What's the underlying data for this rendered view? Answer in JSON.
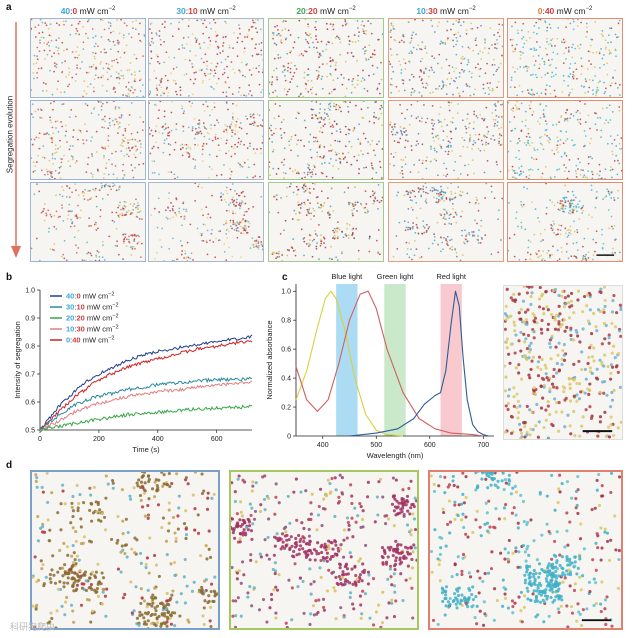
{
  "panels": {
    "a": {
      "label": "a",
      "side_label": "Segregation evolution",
      "columns": [
        {
          "ratio_a": "40",
          "ratio_b": "0",
          "unit": "mW cm",
          "exp": "−2",
          "color_a": "#3aa6d8",
          "color_b": "#d04040",
          "frame": "#9bb5d6"
        },
        {
          "ratio_a": "30",
          "ratio_b": "10",
          "unit": "mW cm",
          "exp": "−2",
          "color_a": "#3aa6d8",
          "color_b": "#d04040",
          "frame": "#aab8cc"
        },
        {
          "ratio_a": "20",
          "ratio_b": "20",
          "unit": "mW cm",
          "exp": "−2",
          "color_a": "#3aa650",
          "color_b": "#d04040",
          "frame": "#a6c890"
        },
        {
          "ratio_a": "10",
          "ratio_b": "30",
          "unit": "mW cm",
          "exp": "−2",
          "color_a": "#3aa6d8",
          "color_b": "#d04040",
          "frame": "#e0a080"
        },
        {
          "ratio_a": "0",
          "ratio_b": "40",
          "unit": "mW cm",
          "exp": "−2",
          "color_a": "#e07b39",
          "color_b": "#d04040",
          "frame": "#e09070"
        }
      ]
    },
    "b": {
      "label": "b",
      "legend": [
        {
          "ratio_a": "40",
          "ratio_b": "0",
          "unit": "mW cm",
          "exp": "−2",
          "color": "#1f3f8f"
        },
        {
          "ratio_a": "30",
          "ratio_b": "10",
          "unit": "mW cm",
          "exp": "−2",
          "color": "#2a8aa0"
        },
        {
          "ratio_a": "20",
          "ratio_b": "20",
          "unit": "mW cm",
          "exp": "−2",
          "color": "#3aa64a"
        },
        {
          "ratio_a": "10",
          "ratio_b": "30",
          "unit": "mW cm",
          "exp": "−2",
          "color": "#e08080"
        },
        {
          "ratio_a": "0",
          "ratio_b": "40",
          "unit": "mW cm",
          "exp": "−2",
          "color": "#d02020"
        }
      ]
    },
    "c": {
      "label": "c",
      "bands": [
        "Blue light",
        "Green light",
        "Red light"
      ],
      "band_colors": [
        "#8fd0f0",
        "#b8e0b8",
        "#f6b8c0"
      ]
    },
    "d": {
      "label": "d"
    }
  },
  "chart_data": [
    {
      "type": "line",
      "panel": "b",
      "title": "",
      "xlabel": "Time (s)",
      "ylabel": "Intensity of segregation",
      "xlim": [
        0,
        720
      ],
      "ylim": [
        0.5,
        1.0
      ],
      "xticks": [
        "0",
        "200",
        "400",
        "600"
      ],
      "yticks": [
        "0.5",
        "0.6",
        "0.7",
        "0.8",
        "0.9",
        "1.0"
      ],
      "x": [
        0,
        60,
        120,
        180,
        240,
        300,
        360,
        420,
        480,
        540,
        600,
        660,
        720
      ],
      "series": [
        {
          "name": "40:0",
          "color": "#1f3f8f",
          "values": [
            0.5,
            0.58,
            0.64,
            0.69,
            0.72,
            0.75,
            0.77,
            0.785,
            0.795,
            0.805,
            0.815,
            0.825,
            0.835
          ]
        },
        {
          "name": "0:40",
          "color": "#d02020",
          "values": [
            0.5,
            0.56,
            0.62,
            0.665,
            0.7,
            0.725,
            0.745,
            0.76,
            0.775,
            0.79,
            0.8,
            0.81,
            0.82
          ]
        },
        {
          "name": "30:10",
          "color": "#2a8aa0",
          "values": [
            0.5,
            0.55,
            0.59,
            0.615,
            0.63,
            0.645,
            0.655,
            0.665,
            0.67,
            0.675,
            0.68,
            0.68,
            0.685
          ]
        },
        {
          "name": "10:30",
          "color": "#e08080",
          "values": [
            0.5,
            0.53,
            0.565,
            0.59,
            0.605,
            0.62,
            0.63,
            0.64,
            0.645,
            0.655,
            0.66,
            0.665,
            0.67
          ]
        },
        {
          "name": "20:20",
          "color": "#3aa64a",
          "values": [
            0.5,
            0.51,
            0.525,
            0.535,
            0.545,
            0.555,
            0.56,
            0.565,
            0.57,
            0.575,
            0.578,
            0.58,
            0.585
          ]
        }
      ]
    },
    {
      "type": "line",
      "panel": "c",
      "title": "",
      "xlabel": "Wavelength (nm)",
      "ylabel": "Normalized absorbance",
      "xlim": [
        350,
        720
      ],
      "ylim": [
        0,
        1.05
      ],
      "xticks": [
        "400",
        "500",
        "600",
        "700"
      ],
      "yticks": [
        "0",
        "0.2",
        "0.4",
        "0.6",
        "0.8",
        "1.0"
      ],
      "bands_nm": [
        [
          425,
          465
        ],
        [
          515,
          555
        ],
        [
          620,
          660
        ]
      ],
      "series": [
        {
          "name": "yellow",
          "color": "#d8d040",
          "x": [
            350,
            370,
            390,
            405,
            415,
            425,
            440,
            460,
            480,
            500,
            520,
            550
          ],
          "values": [
            0.25,
            0.45,
            0.75,
            0.95,
            1.0,
            0.95,
            0.75,
            0.4,
            0.15,
            0.04,
            0.01,
            0.0
          ]
        },
        {
          "name": "red",
          "color": "#d06060",
          "x": [
            350,
            370,
            390,
            410,
            430,
            450,
            470,
            485,
            500,
            520,
            550,
            580,
            610,
            640,
            680,
            700
          ],
          "values": [
            0.48,
            0.25,
            0.17,
            0.25,
            0.5,
            0.8,
            0.98,
            1.0,
            0.88,
            0.6,
            0.3,
            0.12,
            0.05,
            0.02,
            0.01,
            0.0
          ]
        },
        {
          "name": "blue",
          "color": "#2a5d95",
          "x": [
            450,
            500,
            540,
            570,
            590,
            610,
            620,
            630,
            640,
            648,
            655,
            662,
            670,
            680,
            690,
            700,
            710
          ],
          "values": [
            0.0,
            0.02,
            0.05,
            0.12,
            0.22,
            0.28,
            0.3,
            0.45,
            0.78,
            1.0,
            0.9,
            0.55,
            0.25,
            0.08,
            0.03,
            0.01,
            0.0
          ]
        }
      ]
    }
  ],
  "watermark": "科研狗爬虫"
}
